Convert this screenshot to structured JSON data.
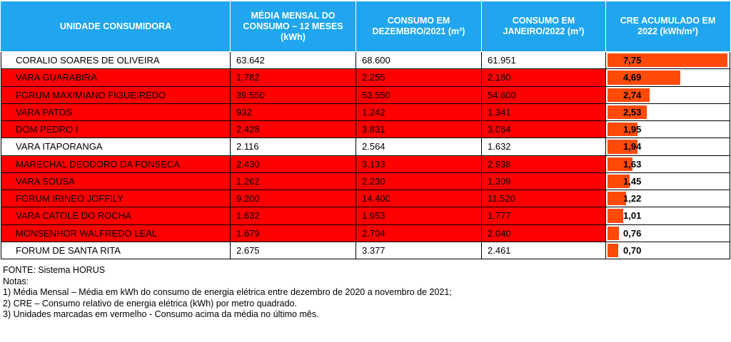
{
  "table": {
    "headers": [
      "UNIDADE CONSUMIDORA",
      "MÉDIA MENSAL DO CONSUMO – 12 MESES (kWh)",
      "CONSUMO EM DEZEMBRO/2021 (m³)",
      "CONSUMO EM JANEIRO/2022 (m³)",
      "CRE ACUMULADO EM 2022 (kWh/m²)"
    ],
    "rows": [
      {
        "unit": "CORALIO SOARES DE OLIVEIRA",
        "avg": "63.642",
        "dec": "68.600",
        "jan": "61.951",
        "cre": "7,75",
        "cre_value": 7.75,
        "highlight": false
      },
      {
        "unit": "VARA GUARABIRA",
        "avg": "1.782",
        "dec": "2.255",
        "jan": "2.160",
        "cre": "4,69",
        "cre_value": 4.69,
        "highlight": true
      },
      {
        "unit": "FORUM MAXIMIANO FIGUEIREDO",
        "avg": "39.550",
        "dec": "53.550",
        "jan": "54.600",
        "cre": "2,74",
        "cre_value": 2.74,
        "highlight": true
      },
      {
        "unit": "VARA PATOS",
        "avg": "932",
        "dec": "1.242",
        "jan": "1.341",
        "cre": "2,53",
        "cre_value": 2.53,
        "highlight": true
      },
      {
        "unit": "DOM PEDRO I",
        "avg": "2.428",
        "dec": "3.831",
        "jan": "3.064",
        "cre": "1,95",
        "cre_value": 1.95,
        "highlight": true
      },
      {
        "unit": "VARA ITAPORANGA",
        "avg": "2.116",
        "dec": "2.564",
        "jan": "1.632",
        "cre": "1,94",
        "cre_value": 1.94,
        "highlight": false
      },
      {
        "unit": "MARECHAL DEODORO DA FONSECA",
        "avg": "2.430",
        "dec": "3.133",
        "jan": "2.938",
        "cre": "1,63",
        "cre_value": 1.63,
        "highlight": true
      },
      {
        "unit": "VARA SOUSA",
        "avg": "1.262",
        "dec": "2.230",
        "jan": "1.309",
        "cre": "1,45",
        "cre_value": 1.45,
        "highlight": true
      },
      {
        "unit": "FORUM IRINEO JOFFILY",
        "avg": "9.200",
        "dec": "14.400",
        "jan": "11.520",
        "cre": "1,22",
        "cre_value": 1.22,
        "highlight": true
      },
      {
        "unit": "VARA CATOLE DO ROCHA",
        "avg": "1.632",
        "dec": "1.953",
        "jan": "1.777",
        "cre": "1,01",
        "cre_value": 1.01,
        "highlight": true
      },
      {
        "unit": "MONSENHOR WALFREDO LEAL",
        "avg": "1.679",
        "dec": "2.704",
        "jan": "2.040",
        "cre": "0,76",
        "cre_value": 0.76,
        "highlight": true
      },
      {
        "unit": "FORUM DE SANTA RITA",
        "avg": "2.675",
        "dec": "3.377",
        "jan": "2.461",
        "cre": "0,70",
        "cre_value": 0.7,
        "highlight": false
      }
    ]
  },
  "notes": {
    "source": "FONTE: Sistema HORUS",
    "title": "Notas:",
    "items": [
      "1) Média Mensal – Média em kWh do consumo de energia elétrica entre dezembro de 2020 a novembro de 2021;",
      "2) CRE – Consumo relativo de energia elétrica (kWh) por metro quadrado.",
      "3) Unidades marcadas em vermelho -  Consumo acima da média no último mês."
    ]
  },
  "colors": {
    "header_bg": "#1fa6ee",
    "highlight_row": "#ff0000",
    "bar": "#ff4a08"
  }
}
